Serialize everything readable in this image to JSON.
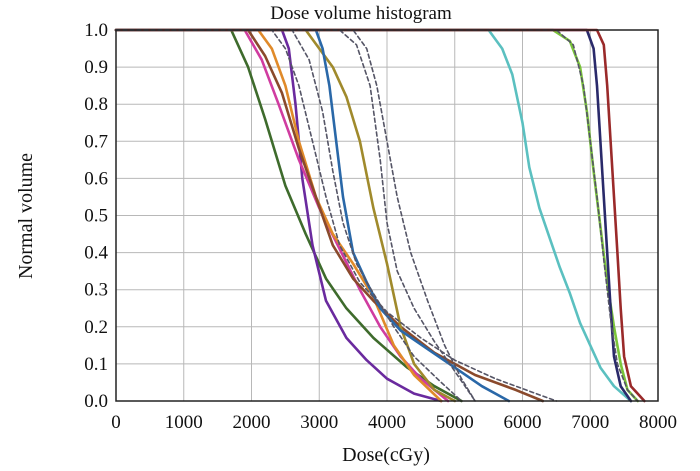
{
  "chart_data": {
    "type": "line",
    "title": "Dose volume histogram",
    "xlabel": "Dose(cGy)",
    "ylabel": "Normal volume",
    "xlim": [
      0,
      8000
    ],
    "ylim": [
      0,
      1.0
    ],
    "x_ticks": [
      0,
      1000,
      2000,
      3000,
      4000,
      5000,
      6000,
      7000,
      8000
    ],
    "y_ticks": [
      0.0,
      0.1,
      0.2,
      0.3,
      0.4,
      0.5,
      0.6,
      0.7,
      0.8,
      0.9,
      1.0
    ],
    "x_tick_labels": [
      "0",
      "1000",
      "2000",
      "3000",
      "4000",
      "5000",
      "6000",
      "7000",
      "8000"
    ],
    "y_tick_labels": [
      "0.0",
      "0.1",
      "0.2",
      "0.3",
      "0.4",
      "0.5",
      "0.6",
      "0.7",
      "0.8",
      "0.9",
      "1.0"
    ],
    "grid": true,
    "series": [
      {
        "name": "dark-green",
        "color": "#3e6b2c",
        "style": "solid",
        "points": [
          [
            0,
            1
          ],
          [
            1700,
            1
          ],
          [
            1950,
            0.9
          ],
          [
            2200,
            0.76
          ],
          [
            2500,
            0.58
          ],
          [
            2800,
            0.45
          ],
          [
            3100,
            0.33
          ],
          [
            3400,
            0.25
          ],
          [
            3800,
            0.17
          ],
          [
            4300,
            0.09
          ],
          [
            4700,
            0.04
          ],
          [
            5100,
            0
          ]
        ]
      },
      {
        "name": "purple",
        "color": "#6a2a9e",
        "style": "solid",
        "points": [
          [
            0,
            1
          ],
          [
            2450,
            1
          ],
          [
            2550,
            0.95
          ],
          [
            2650,
            0.8
          ],
          [
            2750,
            0.6
          ],
          [
            2900,
            0.42
          ],
          [
            3100,
            0.27
          ],
          [
            3400,
            0.17
          ],
          [
            3700,
            0.11
          ],
          [
            4000,
            0.06
          ],
          [
            4400,
            0.02
          ],
          [
            4800,
            0
          ]
        ]
      },
      {
        "name": "magenta",
        "color": "#d03ca0",
        "style": "solid",
        "points": [
          [
            0,
            1
          ],
          [
            1900,
            1
          ],
          [
            2150,
            0.92
          ],
          [
            2400,
            0.8
          ],
          [
            2700,
            0.65
          ],
          [
            3000,
            0.52
          ],
          [
            3300,
            0.41
          ],
          [
            3600,
            0.3
          ],
          [
            3900,
            0.2
          ],
          [
            4200,
            0.12
          ],
          [
            4500,
            0.06
          ],
          [
            4900,
            0
          ]
        ]
      },
      {
        "name": "orange",
        "color": "#e08a2a",
        "style": "solid",
        "points": [
          [
            0,
            1
          ],
          [
            2100,
            1
          ],
          [
            2300,
            0.95
          ],
          [
            2500,
            0.85
          ],
          [
            2700,
            0.7
          ],
          [
            2950,
            0.55
          ],
          [
            3200,
            0.45
          ],
          [
            3500,
            0.37
          ],
          [
            3800,
            0.28
          ],
          [
            4100,
            0.15
          ],
          [
            4400,
            0.07
          ],
          [
            4800,
            0
          ]
        ]
      },
      {
        "name": "brown",
        "color": "#8a4a2c",
        "style": "solid",
        "points": [
          [
            0,
            1
          ],
          [
            1950,
            1
          ],
          [
            2200,
            0.93
          ],
          [
            2450,
            0.83
          ],
          [
            2700,
            0.68
          ],
          [
            2950,
            0.55
          ],
          [
            3200,
            0.42
          ],
          [
            3500,
            0.33
          ],
          [
            3800,
            0.27
          ],
          [
            4200,
            0.2
          ],
          [
            4700,
            0.13
          ],
          [
            5300,
            0.07
          ],
          [
            5900,
            0.03
          ],
          [
            6300,
            0
          ]
        ]
      },
      {
        "name": "olive",
        "color": "#a08a2c",
        "style": "solid",
        "points": [
          [
            0,
            1
          ],
          [
            2800,
            1
          ],
          [
            3000,
            0.95
          ],
          [
            3200,
            0.9
          ],
          [
            3400,
            0.82
          ],
          [
            3600,
            0.7
          ],
          [
            3800,
            0.52
          ],
          [
            4000,
            0.37
          ],
          [
            4200,
            0.2
          ],
          [
            4400,
            0.1
          ],
          [
            4700,
            0.03
          ],
          [
            5000,
            0
          ]
        ]
      },
      {
        "name": "blue",
        "color": "#2a68a8",
        "style": "solid",
        "points": [
          [
            0,
            1
          ],
          [
            2950,
            1
          ],
          [
            3050,
            0.95
          ],
          [
            3150,
            0.85
          ],
          [
            3250,
            0.7
          ],
          [
            3350,
            0.55
          ],
          [
            3500,
            0.4
          ],
          [
            3700,
            0.32
          ],
          [
            3900,
            0.25
          ],
          [
            4200,
            0.19
          ],
          [
            4600,
            0.14
          ],
          [
            5000,
            0.09
          ],
          [
            5400,
            0.04
          ],
          [
            5800,
            0
          ]
        ]
      },
      {
        "name": "teal",
        "color": "#5bc0c0",
        "style": "solid",
        "points": [
          [
            0,
            1
          ],
          [
            5500,
            1
          ],
          [
            5700,
            0.95
          ],
          [
            5850,
            0.88
          ],
          [
            6000,
            0.75
          ],
          [
            6100,
            0.63
          ],
          [
            6250,
            0.52
          ],
          [
            6400,
            0.44
          ],
          [
            6550,
            0.36
          ],
          [
            6700,
            0.29
          ],
          [
            6850,
            0.21
          ],
          [
            7000,
            0.15
          ],
          [
            7150,
            0.09
          ],
          [
            7350,
            0.04
          ],
          [
            7600,
            0
          ]
        ]
      },
      {
        "name": "light-green",
        "color": "#7ac43a",
        "style": "solid",
        "points": [
          [
            0,
            1
          ],
          [
            6450,
            1
          ],
          [
            6700,
            0.97
          ],
          [
            6850,
            0.9
          ],
          [
            6950,
            0.78
          ],
          [
            7050,
            0.62
          ],
          [
            7150,
            0.47
          ],
          [
            7250,
            0.32
          ],
          [
            7350,
            0.2
          ],
          [
            7450,
            0.1
          ],
          [
            7550,
            0.03
          ],
          [
            7700,
            0
          ]
        ]
      },
      {
        "name": "navy",
        "color": "#2a2a6a",
        "style": "solid",
        "points": [
          [
            0,
            1
          ],
          [
            6950,
            1
          ],
          [
            7050,
            0.95
          ],
          [
            7100,
            0.85
          ],
          [
            7150,
            0.7
          ],
          [
            7200,
            0.55
          ],
          [
            7250,
            0.4
          ],
          [
            7300,
            0.25
          ],
          [
            7350,
            0.12
          ],
          [
            7450,
            0.04
          ],
          [
            7600,
            0
          ]
        ]
      },
      {
        "name": "dark-red",
        "color": "#9a2a2a",
        "style": "solid",
        "points": [
          [
            0,
            1
          ],
          [
            7100,
            1
          ],
          [
            7200,
            0.96
          ],
          [
            7250,
            0.85
          ],
          [
            7300,
            0.7
          ],
          [
            7350,
            0.55
          ],
          [
            7400,
            0.4
          ],
          [
            7450,
            0.25
          ],
          [
            7500,
            0.12
          ],
          [
            7600,
            0.04
          ],
          [
            7800,
            0
          ]
        ]
      },
      {
        "name": "dash-a",
        "color": "#555566",
        "style": "dashed",
        "points": [
          [
            0,
            1
          ],
          [
            3300,
            1
          ],
          [
            3550,
            0.96
          ],
          [
            3750,
            0.85
          ],
          [
            3900,
            0.65
          ],
          [
            4000,
            0.48
          ],
          [
            4150,
            0.35
          ],
          [
            4400,
            0.25
          ],
          [
            4700,
            0.16
          ],
          [
            5000,
            0.08
          ],
          [
            5300,
            0
          ]
        ]
      },
      {
        "name": "dash-b",
        "color": "#555566",
        "style": "dashed",
        "points": [
          [
            0,
            1
          ],
          [
            3500,
            1
          ],
          [
            3700,
            0.95
          ],
          [
            3850,
            0.85
          ],
          [
            4000,
            0.7
          ],
          [
            4150,
            0.55
          ],
          [
            4350,
            0.4
          ],
          [
            4600,
            0.27
          ],
          [
            4850,
            0.15
          ],
          [
            5100,
            0.06
          ],
          [
            5300,
            0
          ]
        ]
      },
      {
        "name": "dash-c",
        "color": "#555566",
        "style": "dashed",
        "points": [
          [
            0,
            1
          ],
          [
            2600,
            1
          ],
          [
            2850,
            0.92
          ],
          [
            3050,
            0.78
          ],
          [
            3200,
            0.62
          ],
          [
            3350,
            0.48
          ],
          [
            3550,
            0.37
          ],
          [
            3800,
            0.29
          ],
          [
            4100,
            0.2
          ],
          [
            4400,
            0.12
          ],
          [
            4800,
            0.05
          ],
          [
            5100,
            0
          ]
        ]
      },
      {
        "name": "dash-d",
        "color": "#555566",
        "style": "dashed",
        "points": [
          [
            0,
            1
          ],
          [
            2300,
            1
          ],
          [
            2500,
            0.95
          ],
          [
            2700,
            0.85
          ],
          [
            2900,
            0.7
          ],
          [
            3100,
            0.55
          ],
          [
            3300,
            0.42
          ],
          [
            3600,
            0.32
          ],
          [
            4000,
            0.24
          ],
          [
            4500,
            0.17
          ],
          [
            5000,
            0.11
          ],
          [
            5600,
            0.06
          ],
          [
            6200,
            0.02
          ],
          [
            6500,
            0
          ]
        ]
      },
      {
        "name": "dash-e",
        "color": "#555566",
        "style": "dashed",
        "points": [
          [
            0,
            1
          ],
          [
            6500,
            1
          ],
          [
            6750,
            0.96
          ],
          [
            6900,
            0.85
          ],
          [
            7000,
            0.7
          ],
          [
            7100,
            0.55
          ],
          [
            7200,
            0.38
          ],
          [
            7300,
            0.22
          ],
          [
            7400,
            0.1
          ],
          [
            7550,
            0.03
          ],
          [
            7700,
            0
          ]
        ]
      }
    ]
  }
}
